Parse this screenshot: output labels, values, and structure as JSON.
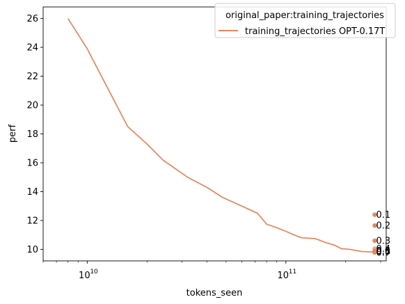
{
  "chart_data": {
    "type": "line",
    "xscale": "log",
    "xlabel": "tokens_seen",
    "ylabel": "perf",
    "xlim": [
      6000000000,
      320000000000
    ],
    "ylim": [
      9.2,
      26.8
    ],
    "yticks": [
      10,
      12,
      14,
      16,
      18,
      20,
      22,
      24,
      26
    ],
    "ytick_labels": [
      "10",
      "12",
      "14",
      "16",
      "18",
      "20",
      "22",
      "24",
      "26"
    ],
    "xticks_major": [
      10000000000,
      100000000000
    ],
    "xtick_labels": [
      {
        "base": "10",
        "exp": "10"
      },
      {
        "base": "10",
        "exp": "11"
      }
    ],
    "legend": {
      "title": "original_paper:training_trajectories",
      "location": "top-right",
      "entries": [
        "training_trajectories OPT-0.17T"
      ]
    },
    "series": [
      {
        "name": "training_trajectories OPT-0.17T",
        "color": "#e8845c",
        "x": [
          8000000000,
          10000000000,
          12000000000,
          16000000000,
          20000000000,
          24000000000,
          32000000000,
          40000000000,
          48000000000,
          60000000000,
          72000000000,
          80000000000,
          90000000000,
          100000000000,
          110000000000,
          120000000000,
          140000000000,
          150000000000,
          160000000000,
          175000000000,
          190000000000,
          210000000000,
          240000000000,
          270000000000,
          280000000000
        ],
        "y": [
          26.0,
          23.9,
          21.8,
          18.5,
          17.3,
          16.2,
          15.0,
          14.3,
          13.6,
          13.0,
          12.5,
          11.75,
          11.5,
          11.25,
          11.0,
          10.8,
          10.75,
          10.6,
          10.45,
          10.3,
          10.05,
          10.0,
          9.85,
          9.82,
          9.8
        ]
      }
    ],
    "annotations": [
      {
        "label": "0.1",
        "x": 280000000000,
        "y": 12.4
      },
      {
        "label": "0.2",
        "x": 280000000000,
        "y": 11.65
      },
      {
        "label": "0.3",
        "x": 280000000000,
        "y": 10.6
      },
      {
        "label": "0.4",
        "x": 280000000000,
        "y": 10.05
      },
      {
        "label": "0.5",
        "x": 280000000000,
        "y": 9.9
      },
      {
        "label": "0.6",
        "x": 280000000000,
        "y": 9.85
      },
      {
        "label": "0.7",
        "x": 280000000000,
        "y": 9.78
      }
    ]
  }
}
